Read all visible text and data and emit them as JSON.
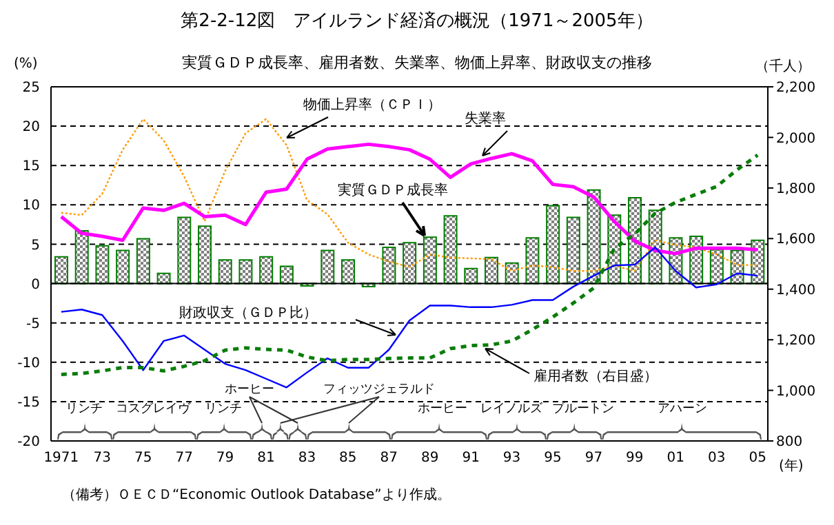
{
  "chart_data": {
    "type": "bar",
    "title": "第2-2-12図　アイルランド経済の概況（1971～2005年）",
    "subtitle": "実質ＧＤＰ成長率、雇用者数、失業率、物価上昇率、財政収支の推移",
    "ylabel": "(%)",
    "y2label": "（千人）",
    "xlabel": "(年)",
    "annotations": [
      "リンチ",
      "コスグレイヴ",
      "リンチ",
      "ホーヒー",
      "フィッツジェラルド",
      "ホーヒー",
      "レイノルズ",
      "ブルートン",
      "アハーン",
      "（備考）ＯＥＣＤ“Economic Outlook Database”より作成。"
    ],
    "categories": [
      "1971",
      null,
      "73",
      null,
      "75",
      null,
      "77",
      null,
      "79",
      null,
      "81",
      null,
      "83",
      null,
      "85",
      null,
      "87",
      null,
      "89",
      null,
      "91",
      null,
      "93",
      null,
      "95",
      null,
      "97",
      null,
      "99",
      null,
      "01",
      null,
      "03",
      null,
      "05"
    ],
    "series": [
      {
        "name": "実質ＧＤＰ成長率",
        "color": "#008000",
        "values": [
          3.4,
          6.7,
          4.8,
          4.2,
          5.7,
          1.3,
          8.4,
          7.3,
          3.0,
          3.0,
          3.4,
          2.2,
          -0.3,
          4.2,
          3.0,
          -0.4,
          4.6,
          5.2,
          5.9,
          8.6,
          1.9,
          3.3,
          2.6,
          5.8,
          9.9,
          8.4,
          11.9,
          8.7,
          10.9,
          9.3,
          5.8,
          6.0,
          4.3,
          4.2,
          5.5
        ]
      },
      {
        "name": "物価上昇率（ＣＰＩ）",
        "type": "line",
        "color": "#ff9900",
        "line_style": "dotted",
        "values": [
          9.0,
          8.7,
          11.4,
          17.0,
          20.9,
          18.2,
          13.6,
          7.9,
          14.3,
          19.1,
          20.9,
          17.6,
          10.6,
          8.8,
          5.2,
          3.7,
          2.8,
          2.1,
          3.7,
          3.3,
          3.2,
          3.1,
          1.6,
          2.3,
          2.1,
          1.6,
          1.6,
          2.3,
          1.6,
          5.5,
          4.9,
          4.6,
          3.7,
          2.4,
          2.3
        ]
      },
      {
        "name": "失業率",
        "type": "line",
        "color": "#ff00ff",
        "line_style": "solid",
        "values": [
          8.5,
          6.4,
          6.0,
          5.5,
          9.6,
          9.3,
          10.2,
          8.5,
          8.7,
          7.5,
          11.6,
          12.0,
          15.8,
          17.1,
          17.4,
          17.7,
          17.4,
          17.0,
          15.8,
          13.5,
          15.2,
          15.9,
          16.5,
          15.6,
          12.6,
          12.3,
          11.0,
          7.9,
          5.4,
          4.2,
          3.8,
          4.5,
          4.5,
          4.5,
          4.3
        ]
      },
      {
        "name": "財政収支（ＧＤＰ比）",
        "type": "line",
        "color": "#0000ff",
        "line_style": "solid",
        "values": [
          -3.6,
          -3.3,
          -4.0,
          -7.3,
          -11.0,
          -7.3,
          -6.6,
          -8.4,
          -10.2,
          -11.0,
          -12.1,
          -13.2,
          -11.3,
          -9.5,
          -10.7,
          -10.7,
          -8.4,
          -4.7,
          -2.8,
          -2.8,
          -3.0,
          -3.0,
          -2.7,
          -2.1,
          -2.1,
          -0.4,
          1.0,
          2.3,
          2.4,
          4.6,
          1.6,
          -0.5,
          -0.1,
          1.3,
          1.0
        ]
      },
      {
        "name": "雇用者数（右目盛）",
        "type": "line",
        "color": "#0a7d0a",
        "line_style": "dashed",
        "axis": "y2",
        "values": [
          1063,
          1067,
          1077,
          1090,
          1090,
          1077,
          1095,
          1117,
          1159,
          1168,
          1162,
          1159,
          1132,
          1117,
          1122,
          1122,
          1126,
          1128,
          1128,
          1165,
          1177,
          1180,
          1195,
          1240,
          1290,
          1345,
          1405,
          1560,
          1618,
          1700,
          1743,
          1775,
          1806,
          1872,
          1930
        ]
      }
    ],
    "ylim": [
      -20,
      25
    ],
    "yticks": [
      -20,
      -15,
      -10,
      -5,
      0,
      5,
      10,
      15,
      20,
      25
    ],
    "y2lim": [
      800,
      2200
    ],
    "y2ticks": [
      800,
      {
        "value": 1000,
        "label": "1,000"
      },
      {
        "value": 1200,
        "label": "1,200"
      },
      {
        "value": 1400,
        "label": "1,400"
      },
      {
        "value": 1600,
        "label": "1,600"
      },
      {
        "value": 1800,
        "label": "1,800"
      },
      {
        "value": 2000,
        "label": "2,000"
      },
      {
        "value": 2200,
        "label": "2,200"
      }
    ],
    "ref_lines": [
      {
        "axis": "y",
        "value": 0,
        "color": "#000000",
        "line_style": "solid"
      }
    ],
    "grid": "y",
    "legend": false,
    "marker": "none"
  }
}
